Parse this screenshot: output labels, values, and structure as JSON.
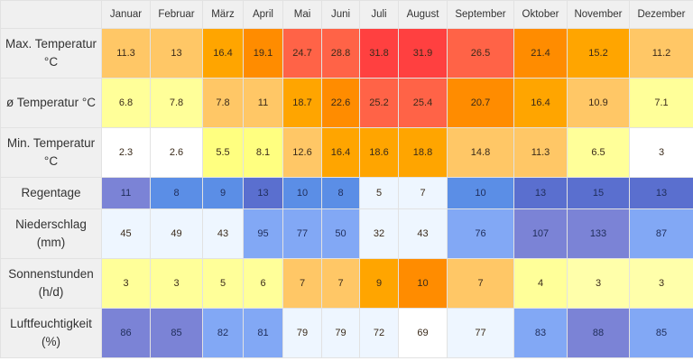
{
  "table": {
    "months": [
      "Januar",
      "Februar",
      "März",
      "April",
      "Mai",
      "Juni",
      "Juli",
      "August",
      "September",
      "Oktober",
      "November",
      "Dezember"
    ],
    "rows": [
      {
        "label": "Max. Temperatur °C",
        "values": [
          "11.3",
          "13",
          "16.4",
          "19.1",
          "24.7",
          "28.8",
          "31.8",
          "31.9",
          "26.5",
          "21.4",
          "15.2",
          "11.2"
        ],
        "colors": [
          "#ffc766",
          "#ffc766",
          "#ffa500",
          "#ff8c00",
          "#ff6347",
          "#ff6347",
          "#ff4040",
          "#ff4040",
          "#ff6347",
          "#ff8c00",
          "#ffa500",
          "#ffc766"
        ]
      },
      {
        "label": "ø Temperatur °C",
        "values": [
          "6.8",
          "7.8",
          "7.8",
          "11",
          "18.7",
          "22.6",
          "25.2",
          "25.4",
          "20.7",
          "16.4",
          "10.9",
          "7.1"
        ],
        "colors": [
          "#ffff99",
          "#ffff99",
          "#ffc766",
          "#ffc766",
          "#ffa500",
          "#ff8c00",
          "#ff6347",
          "#ff6347",
          "#ff8c00",
          "#ffa500",
          "#ffc766",
          "#ffff99"
        ]
      },
      {
        "label": "Min. Temperatur °C",
        "values": [
          "2.3",
          "2.6",
          "5.5",
          "8.1",
          "12.6",
          "16.4",
          "18.6",
          "18.8",
          "14.8",
          "11.3",
          "6.5",
          "3"
        ],
        "colors": [
          "#ffffff",
          "#ffffff",
          "#ffff80",
          "#ffff80",
          "#ffc766",
          "#ffa500",
          "#ffa500",
          "#ffa500",
          "#ffc766",
          "#ffc766",
          "#ffff99",
          "#ffffff"
        ]
      },
      {
        "label": "Regentage",
        "values": [
          "11",
          "8",
          "9",
          "13",
          "10",
          "8",
          "5",
          "7",
          "10",
          "13",
          "15",
          "13"
        ],
        "colors": [
          "#7b83d6",
          "#5b8ee6",
          "#5b8ee6",
          "#5a6fcf",
          "#5b8ee6",
          "#5b8ee6",
          "#eef6ff",
          "#eef6ff",
          "#5b8ee6",
          "#5a6fcf",
          "#5a6fcf",
          "#5a6fcf"
        ],
        "short": true
      },
      {
        "label": "Niederschlag (mm)",
        "values": [
          "45",
          "49",
          "43",
          "95",
          "77",
          "50",
          "32",
          "43",
          "76",
          "107",
          "133",
          "87"
        ],
        "colors": [
          "#eef6ff",
          "#eef6ff",
          "#eef6ff",
          "#82a8f5",
          "#82a8f5",
          "#82a8f5",
          "#eef6ff",
          "#eef6ff",
          "#82a8f5",
          "#7b83d6",
          "#7b83d6",
          "#82a8f5"
        ]
      },
      {
        "label": "Sonnenstunden (h/d)",
        "values": [
          "3",
          "3",
          "5",
          "6",
          "7",
          "7",
          "9",
          "10",
          "7",
          "4",
          "3",
          "3"
        ],
        "colors": [
          "#ffff99",
          "#ffff99",
          "#ffff99",
          "#ffff99",
          "#ffc766",
          "#ffc766",
          "#ffa500",
          "#ff8c00",
          "#ffc766",
          "#ffff99",
          "#ffffaa",
          "#ffffaa"
        ]
      },
      {
        "label": "Luftfeuchtigkeit (%)",
        "values": [
          "86",
          "85",
          "82",
          "81",
          "79",
          "79",
          "72",
          "69",
          "77",
          "83",
          "88",
          "85"
        ],
        "colors": [
          "#7b83d6",
          "#7b83d6",
          "#82a8f5",
          "#82a8f5",
          "#eef6ff",
          "#eef6ff",
          "#eef6ff",
          "#ffffff",
          "#eef6ff",
          "#82a8f5",
          "#7b83d6",
          "#82a8f5"
        ]
      }
    ]
  }
}
